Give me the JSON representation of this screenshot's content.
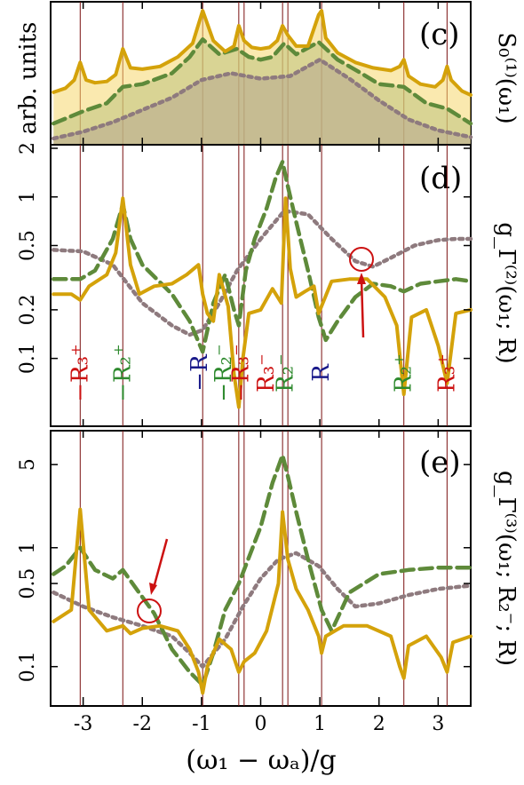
{
  "colors": {
    "solid": "#d4a20a",
    "dashed": "#5e8a3a",
    "dotted": "#8e7a7e",
    "vline": "#7a1010",
    "red": "#cc1111",
    "green": "#2e8a2e",
    "blue": "#1a1a8a"
  },
  "xaxis": {
    "label": "(ω₁ − ωₐ)/g",
    "ticks": [
      -3,
      -2,
      -1,
      0,
      1,
      2,
      3
    ],
    "tick_labels": [
      "-3",
      "-2",
      "-1",
      "0",
      "1",
      "2",
      "3"
    ],
    "range": [
      -3.55,
      3.55
    ]
  },
  "vlines": [
    -3.05,
    -2.33,
    -0.98,
    -0.37,
    -0.28,
    0.37,
    0.46,
    1.03,
    2.42,
    3.15
  ],
  "panels": {
    "c": {
      "letter": "(c)",
      "ylabel": "arb. units",
      "right_label": "S₀⁽¹⁾(ω₁)"
    },
    "d": {
      "letter": "(d)",
      "ticks": [
        0.1,
        0.2,
        0.5,
        1,
        2
      ],
      "tick_labels": [
        "0.1",
        "0.2",
        "0.5",
        "1",
        "2"
      ],
      "right_label": "g_Γ⁽²⁾(ω₁; R)",
      "resonance_labels": [
        {
          "text": "−R₃⁺",
          "x": -3.05,
          "color": "red"
        },
        {
          "text": "−R₂⁺",
          "x": -2.33,
          "color": "green"
        },
        {
          "text": "−R",
          "x": -1.03,
          "color": "blue"
        },
        {
          "text": "−R₂⁻",
          "x": -0.62,
          "color": "green"
        },
        {
          "text": "−R₃⁻",
          "x": -0.33,
          "color": "red"
        },
        {
          "text": "R₃⁻",
          "x": 0.1,
          "color": "red"
        },
        {
          "text": "R₂⁻",
          "x": 0.42,
          "color": "green"
        },
        {
          "text": "R",
          "x": 1.03,
          "color": "blue"
        },
        {
          "text": "R₂⁺",
          "x": 2.42,
          "color": "green"
        },
        {
          "text": "R₃⁺",
          "x": 3.15,
          "color": "red"
        }
      ]
    },
    "e": {
      "letter": "(e)",
      "ticks": [
        0.1,
        0.5,
        1,
        5
      ],
      "tick_labels": [
        "0.1",
        "0.5",
        "1",
        "5"
      ],
      "right_label": "g_Γ⁽³⁾(ω₁; R₂⁻; R)"
    }
  },
  "chart_data": [
    {
      "type": "line",
      "panel": "c",
      "ylabel": "arb. units",
      "ylim": [
        0,
        1
      ],
      "series": [
        {
          "style": "solid",
          "x": [
            -3.5,
            -3.3,
            -3.15,
            -3.05,
            -2.95,
            -2.8,
            -2.6,
            -2.45,
            -2.33,
            -2.2,
            -2.0,
            -1.7,
            -1.4,
            -1.15,
            -0.98,
            -0.8,
            -0.6,
            -0.45,
            -0.37,
            -0.28,
            -0.15,
            0,
            0.15,
            0.28,
            0.37,
            0.46,
            0.6,
            0.8,
            0.98,
            1.03,
            1.1,
            1.3,
            1.6,
            1.9,
            2.2,
            2.35,
            2.42,
            2.5,
            2.7,
            2.95,
            3.08,
            3.15,
            3.22,
            3.4,
            3.55
          ],
          "y": [
            0.36,
            0.39,
            0.45,
            0.58,
            0.45,
            0.43,
            0.44,
            0.49,
            0.68,
            0.54,
            0.53,
            0.55,
            0.62,
            0.72,
            0.96,
            0.74,
            0.66,
            0.7,
            0.85,
            0.74,
            0.69,
            0.68,
            0.69,
            0.74,
            0.85,
            0.78,
            0.7,
            0.7,
            0.93,
            0.96,
            0.76,
            0.65,
            0.58,
            0.54,
            0.52,
            0.55,
            0.6,
            0.48,
            0.42,
            0.4,
            0.45,
            0.55,
            0.45,
            0.37,
            0.34
          ]
        },
        {
          "style": "dashed",
          "x": [
            -3.5,
            -3.0,
            -2.6,
            -2.33,
            -2.0,
            -1.5,
            -1.2,
            -0.98,
            -0.7,
            -0.4,
            -0.2,
            0,
            0.2,
            0.4,
            0.6,
            0.98,
            1.3,
            1.7,
            2.0,
            2.42,
            2.8,
            3.15,
            3.55
          ],
          "y": [
            0.13,
            0.22,
            0.28,
            0.4,
            0.42,
            0.5,
            0.62,
            0.75,
            0.64,
            0.68,
            0.62,
            0.6,
            0.62,
            0.72,
            0.64,
            0.73,
            0.6,
            0.5,
            0.42,
            0.4,
            0.28,
            0.24,
            0.13
          ]
        },
        {
          "style": "dotted",
          "x": [
            -3.5,
            -3.0,
            -2.5,
            -2.0,
            -1.5,
            -1.0,
            -0.5,
            0,
            0.5,
            1.0,
            1.5,
            2.0,
            2.5,
            3.0,
            3.55
          ],
          "y": [
            0.02,
            0.07,
            0.14,
            0.23,
            0.32,
            0.45,
            0.5,
            0.46,
            0.48,
            0.6,
            0.46,
            0.3,
            0.16,
            0.08,
            0.03
          ]
        }
      ]
    },
    {
      "type": "line",
      "panel": "d",
      "ylim": [
        0.04,
        2.0
      ],
      "yscale": "log",
      "series": [
        {
          "style": "solid",
          "x": [
            -3.5,
            -3.2,
            -3.05,
            -2.9,
            -2.6,
            -2.45,
            -2.33,
            -2.2,
            -2.05,
            -1.8,
            -1.5,
            -1.25,
            -1.05,
            -0.98,
            -0.9,
            -0.8,
            -0.7,
            -0.55,
            -0.45,
            -0.37,
            -0.3,
            -0.2,
            0,
            0.2,
            0.35,
            0.42,
            0.5,
            0.6,
            0.75,
            0.9,
            0.98,
            1.05,
            1.2,
            1.5,
            1.8,
            2.1,
            2.3,
            2.42,
            2.55,
            2.8,
            3.0,
            3.15,
            3.3,
            3.55
          ],
          "y": [
            0.25,
            0.25,
            0.23,
            0.28,
            0.33,
            0.45,
            0.98,
            0.38,
            0.25,
            0.28,
            0.29,
            0.33,
            0.38,
            0.25,
            0.19,
            0.17,
            0.33,
            0.21,
            0.08,
            0.05,
            0.1,
            0.19,
            0.2,
            0.27,
            0.22,
            0.98,
            0.36,
            0.24,
            0.26,
            0.28,
            0.19,
            0.22,
            0.3,
            0.31,
            0.31,
            0.24,
            0.16,
            0.06,
            0.18,
            0.2,
            0.12,
            0.07,
            0.19,
            0.2
          ]
        },
        {
          "style": "dashed",
          "x": [
            -3.5,
            -3.05,
            -2.8,
            -2.5,
            -2.33,
            -2.2,
            -2.0,
            -1.5,
            -1.2,
            -0.98,
            -0.8,
            -0.6,
            -0.45,
            -0.37,
            -0.25,
            -0.1,
            0.1,
            0.25,
            0.37,
            0.45,
            0.6,
            0.8,
            0.98,
            1.1,
            1.3,
            1.6,
            1.9,
            2.2,
            2.42,
            2.7,
            3.0,
            3.3,
            3.55
          ],
          "y": [
            0.31,
            0.31,
            0.35,
            0.55,
            0.9,
            0.55,
            0.38,
            0.25,
            0.17,
            0.11,
            0.22,
            0.33,
            0.2,
            0.16,
            0.35,
            0.55,
            0.85,
            1.3,
            1.65,
            1.2,
            0.7,
            0.35,
            0.18,
            0.13,
            0.17,
            0.24,
            0.29,
            0.28,
            0.26,
            0.29,
            0.3,
            0.31,
            0.3
          ]
        },
        {
          "style": "dotted",
          "x": [
            -3.5,
            -3.0,
            -2.5,
            -2.0,
            -1.5,
            -1.2,
            -0.98,
            -0.7,
            -0.4,
            0,
            0.4,
            0.8,
            1.2,
            1.6,
            1.9,
            2.2,
            2.6,
            3.0,
            3.3,
            3.55
          ],
          "y": [
            0.47,
            0.46,
            0.38,
            0.22,
            0.16,
            0.14,
            0.15,
            0.22,
            0.35,
            0.55,
            0.82,
            0.78,
            0.55,
            0.4,
            0.37,
            0.42,
            0.5,
            0.54,
            0.55,
            0.55
          ]
        }
      ]
    },
    {
      "type": "line",
      "panel": "e",
      "ylim": [
        0.05,
        9.0
      ],
      "yscale": "log",
      "series": [
        {
          "style": "solid",
          "x": [
            -3.5,
            -3.2,
            -3.05,
            -2.9,
            -2.6,
            -2.33,
            -2.2,
            -2.0,
            -1.7,
            -1.4,
            -1.2,
            -1.05,
            -0.98,
            -0.9,
            -0.7,
            -0.5,
            -0.37,
            -0.28,
            -0.1,
            0.1,
            0.3,
            0.37,
            0.46,
            0.6,
            0.8,
            0.98,
            1.03,
            1.1,
            1.4,
            1.8,
            2.2,
            2.35,
            2.42,
            2.5,
            2.8,
            3.05,
            3.15,
            3.25,
            3.55
          ],
          "y": [
            0.24,
            0.3,
            2.1,
            0.3,
            0.2,
            0.22,
            0.19,
            0.21,
            0.22,
            0.2,
            0.14,
            0.09,
            0.06,
            0.1,
            0.17,
            0.14,
            0.09,
            0.11,
            0.13,
            0.2,
            0.5,
            2.0,
            0.8,
            0.45,
            0.3,
            0.18,
            0.13,
            0.18,
            0.22,
            0.22,
            0.18,
            0.1,
            0.08,
            0.15,
            0.18,
            0.12,
            0.09,
            0.16,
            0.18
          ]
        },
        {
          "style": "dashed",
          "x": [
            -3.5,
            -3.3,
            -3.05,
            -2.8,
            -2.5,
            -2.33,
            -2.1,
            -1.8,
            -1.5,
            -1.2,
            -0.98,
            -0.8,
            -0.6,
            -0.37,
            -0.28,
            0,
            0.2,
            0.37,
            0.46,
            0.6,
            0.8,
            1.03,
            1.2,
            1.5,
            2.0,
            2.5,
            3.0,
            3.55
          ],
          "y": [
            0.6,
            0.7,
            1.0,
            0.65,
            0.55,
            0.65,
            0.45,
            0.28,
            0.14,
            0.09,
            0.07,
            0.13,
            0.3,
            0.5,
            0.65,
            1.5,
            3.5,
            6.0,
            4.0,
            2.0,
            0.8,
            0.3,
            0.2,
            0.42,
            0.6,
            0.65,
            0.68,
            0.68
          ]
        },
        {
          "style": "dotted",
          "x": [
            -3.5,
            -3.0,
            -2.5,
            -2.0,
            -1.5,
            -1.2,
            -0.98,
            -0.6,
            -0.3,
            0,
            0.3,
            0.6,
            0.98,
            1.3,
            1.6,
            2.0,
            2.5,
            3.0,
            3.55
          ],
          "y": [
            0.42,
            0.32,
            0.26,
            0.22,
            0.18,
            0.13,
            0.1,
            0.17,
            0.32,
            0.55,
            0.8,
            0.9,
            0.7,
            0.45,
            0.32,
            0.34,
            0.4,
            0.45,
            0.48
          ]
        }
      ]
    }
  ]
}
